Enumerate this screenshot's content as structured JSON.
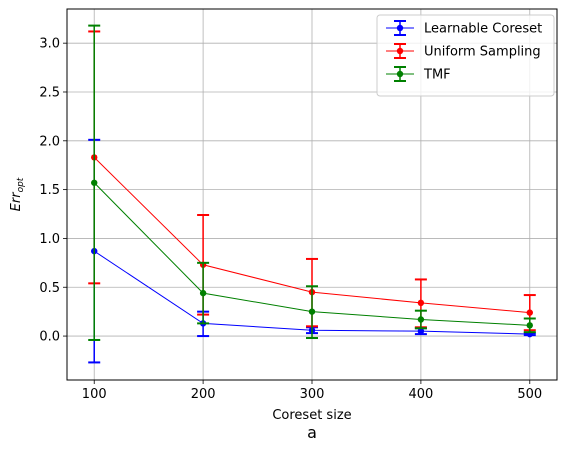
{
  "chart_data": {
    "type": "line",
    "title": "",
    "caption": "a",
    "xlabel": "Coreset size",
    "ylabel_base": "Err",
    "ylabel_sub": "opt",
    "x": [
      100,
      200,
      300,
      400,
      500
    ],
    "xlim": [
      75,
      525
    ],
    "ylim": [
      -0.45,
      3.35
    ],
    "xticks": [
      100,
      200,
      300,
      400,
      500
    ],
    "yticks": [
      0.0,
      0.5,
      1.0,
      1.5,
      2.0,
      2.5,
      3.0
    ],
    "xtick_labels": [
      "100",
      "200",
      "300",
      "400",
      "500"
    ],
    "ytick_labels": [
      "0.0",
      "0.5",
      "1.0",
      "1.5",
      "2.0",
      "2.5",
      "3.0"
    ],
    "grid": true,
    "legend_position": "top-right",
    "series": [
      {
        "name": "Learnable Coreset",
        "color": "#0000ff",
        "values": [
          0.87,
          0.13,
          0.06,
          0.05,
          0.02
        ],
        "err_low": [
          -0.27,
          0.0,
          0.03,
          0.02,
          0.01
        ],
        "err_high": [
          2.01,
          0.25,
          0.09,
          0.08,
          0.03
        ]
      },
      {
        "name": "Uniform Sampling",
        "color": "#ff0000",
        "values": [
          1.83,
          0.73,
          0.45,
          0.34,
          0.24
        ],
        "err_low": [
          0.54,
          0.22,
          0.1,
          0.09,
          0.06
        ],
        "err_high": [
          3.12,
          1.24,
          0.79,
          0.58,
          0.42
        ]
      },
      {
        "name": "TMF",
        "color": "#008000",
        "values": [
          1.57,
          0.44,
          0.25,
          0.17,
          0.11
        ],
        "err_low": [
          -0.04,
          0.13,
          -0.02,
          0.08,
          0.04
        ],
        "err_high": [
          3.18,
          0.75,
          0.51,
          0.26,
          0.18
        ]
      }
    ]
  }
}
